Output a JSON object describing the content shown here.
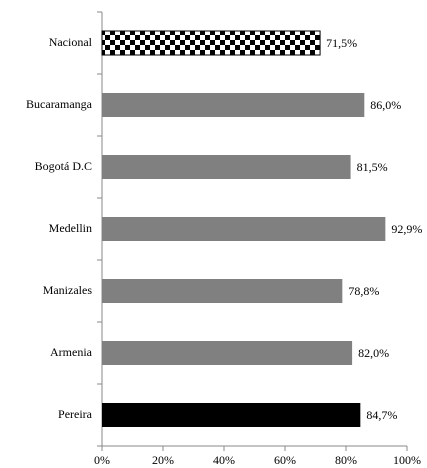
{
  "chart_data": {
    "type": "hbar",
    "categories": [
      "Nacional",
      "Bucaramanga",
      "Bogotá D.C",
      "Medellin",
      "Manizales",
      "Armenia",
      "Pereira"
    ],
    "values": [
      71.5,
      86.0,
      81.5,
      92.9,
      78.8,
      82.0,
      84.7
    ],
    "value_labels": [
      "71,5%",
      "86,0%",
      "81,5%",
      "92,9%",
      "78,8%",
      "82,0%",
      "84,7%"
    ],
    "colors": [
      "checkerboard",
      "#808080",
      "#808080",
      "#808080",
      "#808080",
      "#808080",
      "#000000"
    ],
    "xlim": [
      0,
      100
    ],
    "xticks": [
      {
        "value": 0,
        "label": "0%"
      },
      {
        "value": 20,
        "label": "20%"
      },
      {
        "value": 40,
        "label": "40%"
      },
      {
        "value": 60,
        "label": "60%"
      },
      {
        "value": 80,
        "label": "80%"
      },
      {
        "value": 100,
        "label": "100%"
      }
    ],
    "grid": false
  }
}
